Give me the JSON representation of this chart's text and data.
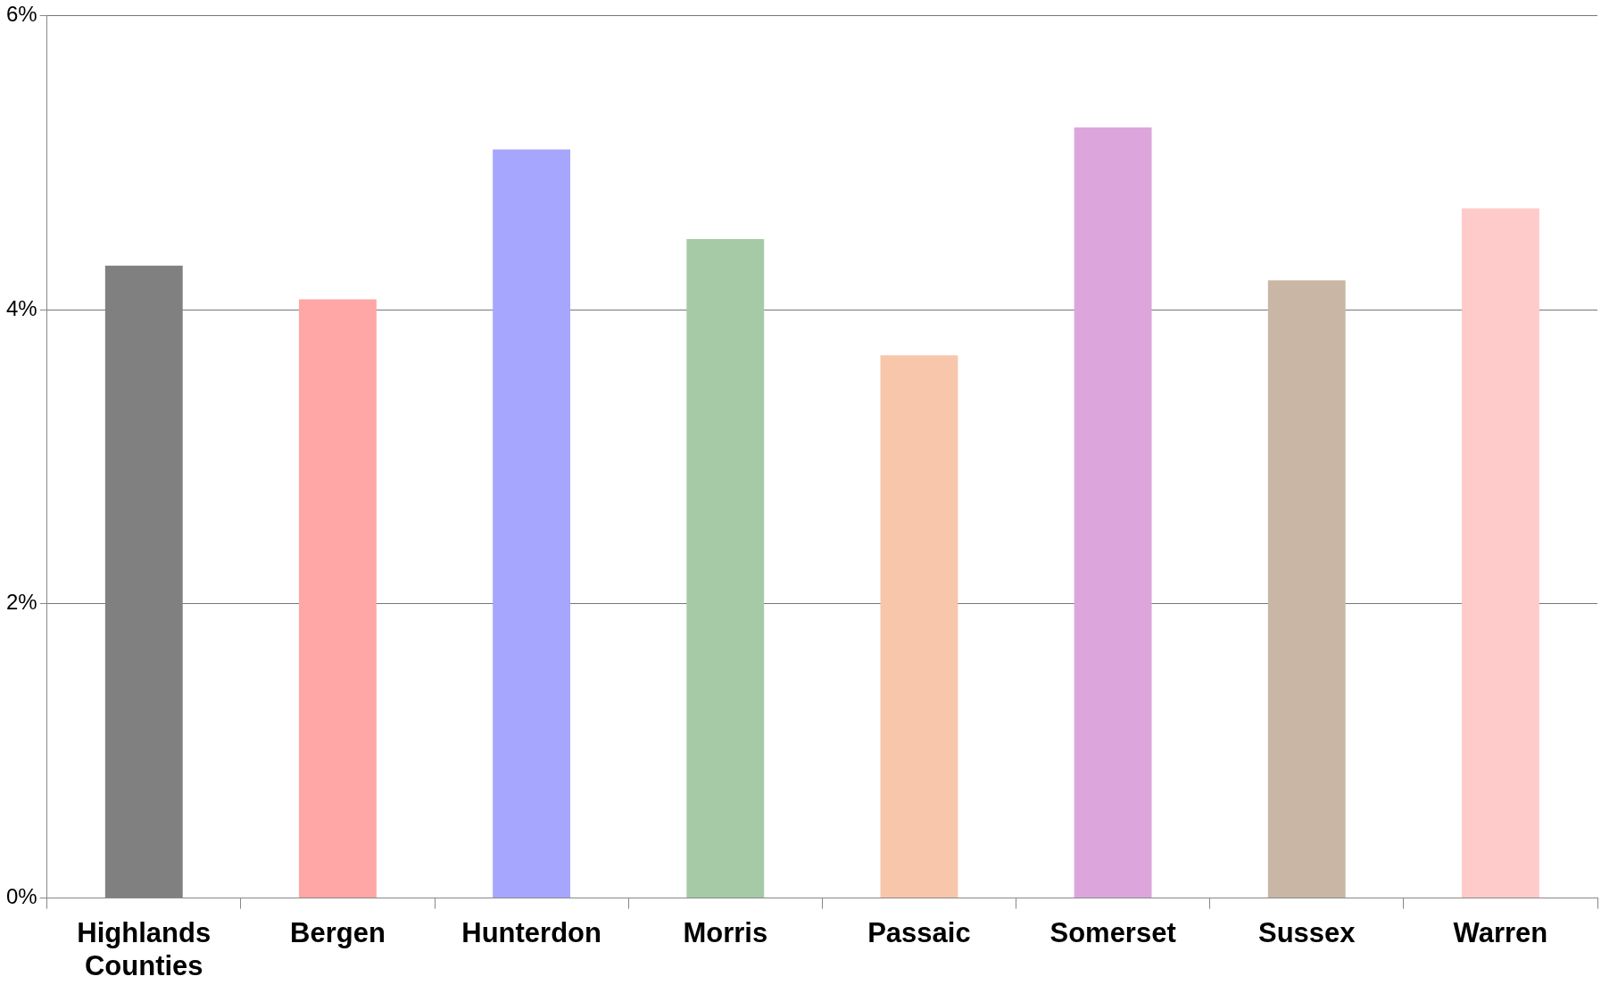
{
  "chart_data": {
    "type": "bar",
    "categories": [
      "Highlands Counties",
      "Bergen",
      "Hunterdon",
      "Morris",
      "Passaic",
      "Somerset",
      "Sussex",
      "Warren"
    ],
    "values": [
      4.3,
      4.07,
      5.09,
      4.48,
      3.69,
      5.24,
      4.2,
      4.69
    ],
    "colors": [
      "#808080",
      "#ffa6a6",
      "#a6a6ff",
      "#a6caa6",
      "#f8c6aa",
      "#dca6dc",
      "#c9b6a4",
      "#ffcaca"
    ],
    "ylim": [
      0,
      6
    ],
    "yticks": [
      {
        "value": 0,
        "label": "0%"
      },
      {
        "value": 2,
        "label": "2%"
      },
      {
        "value": 4,
        "label": "4%"
      },
      {
        "value": 6,
        "label": "6%"
      }
    ],
    "grid": "y",
    "legend": false
  }
}
